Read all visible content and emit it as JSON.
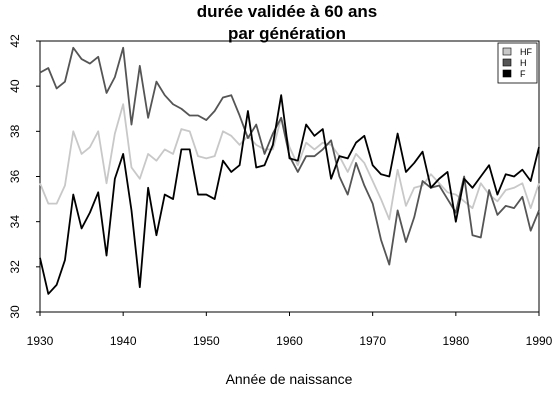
{
  "chart_data": {
    "type": "line",
    "title": [
      "durée validée à 60 ans",
      "par génération"
    ],
    "xlabel": "Année de naissance",
    "ylabel": "",
    "xlim": [
      1930,
      1990
    ],
    "ylim": [
      30,
      42
    ],
    "xticks": [
      1930,
      1940,
      1950,
      1960,
      1970,
      1980,
      1990
    ],
    "yticks": [
      30,
      32,
      34,
      36,
      38,
      40,
      42
    ],
    "grid": false,
    "legend": "top-right",
    "x": [
      1930,
      1931,
      1932,
      1933,
      1934,
      1935,
      1936,
      1937,
      1938,
      1939,
      1940,
      1941,
      1942,
      1943,
      1944,
      1945,
      1946,
      1947,
      1948,
      1949,
      1950,
      1951,
      1952,
      1953,
      1954,
      1955,
      1956,
      1957,
      1958,
      1959,
      1960,
      1961,
      1962,
      1963,
      1964,
      1965,
      1966,
      1967,
      1968,
      1969,
      1970,
      1971,
      1972,
      1973,
      1974,
      1975,
      1976,
      1977,
      1978,
      1979,
      1980,
      1981,
      1982,
      1983,
      1984,
      1985,
      1986,
      1987,
      1988,
      1989,
      1990
    ],
    "series": [
      {
        "name": "HF",
        "color": "#c8c8c8",
        "values": [
          35.7,
          34.8,
          34.8,
          35.6,
          38.0,
          37.0,
          37.3,
          38.0,
          35.7,
          37.9,
          39.2,
          36.4,
          35.9,
          37.0,
          36.7,
          37.2,
          37.0,
          38.1,
          38.0,
          36.9,
          36.8,
          36.9,
          38.0,
          37.8,
          37.4,
          37.8,
          37.4,
          37.2,
          37.2,
          38.6,
          37.3,
          36.5,
          37.5,
          37.2,
          37.5,
          37.4,
          36.9,
          36.2,
          37.0,
          36.6,
          35.8,
          35.0,
          34.1,
          36.3,
          34.7,
          35.5,
          35.6,
          36.1,
          35.7,
          35.3,
          35.2,
          34.9,
          34.6,
          35.7,
          35.2,
          34.9,
          35.4,
          35.5,
          35.7,
          34.6,
          35.7
        ]
      },
      {
        "name": "H",
        "color": "#555555",
        "values": [
          40.6,
          40.8,
          39.9,
          40.2,
          41.7,
          41.2,
          41.0,
          41.3,
          39.7,
          40.4,
          41.7,
          38.3,
          40.9,
          38.6,
          40.2,
          39.6,
          39.2,
          39.0,
          38.7,
          38.7,
          38.5,
          38.9,
          39.5,
          39.6,
          38.7,
          37.7,
          38.3,
          37.0,
          37.9,
          38.6,
          36.9,
          36.2,
          36.9,
          36.9,
          37.2,
          37.6,
          36.0,
          35.2,
          36.6,
          35.6,
          34.8,
          33.2,
          32.1,
          34.5,
          33.1,
          34.2,
          35.8,
          35.5,
          35.6,
          35.0,
          34.4,
          36.0,
          33.4,
          33.3,
          35.4,
          34.3,
          34.7,
          34.6,
          35.1,
          33.6,
          34.5
        ]
      },
      {
        "name": "F",
        "color": "#000000",
        "values": [
          32.4,
          30.8,
          31.2,
          32.3,
          35.2,
          33.7,
          34.4,
          35.3,
          32.5,
          35.9,
          37.0,
          34.5,
          31.1,
          35.5,
          33.4,
          35.2,
          35.0,
          37.2,
          37.2,
          35.2,
          35.2,
          35.0,
          36.7,
          36.2,
          36.5,
          38.9,
          36.4,
          36.5,
          37.4,
          39.6,
          36.8,
          36.7,
          38.3,
          37.8,
          38.1,
          35.9,
          36.9,
          36.8,
          37.5,
          37.8,
          36.5,
          36.1,
          36.0,
          37.9,
          36.2,
          36.6,
          37.1,
          35.5,
          35.9,
          36.2,
          34.0,
          35.9,
          35.5,
          36.0,
          36.5,
          35.2,
          36.1,
          36.0,
          36.3,
          35.8,
          37.3
        ]
      }
    ]
  }
}
